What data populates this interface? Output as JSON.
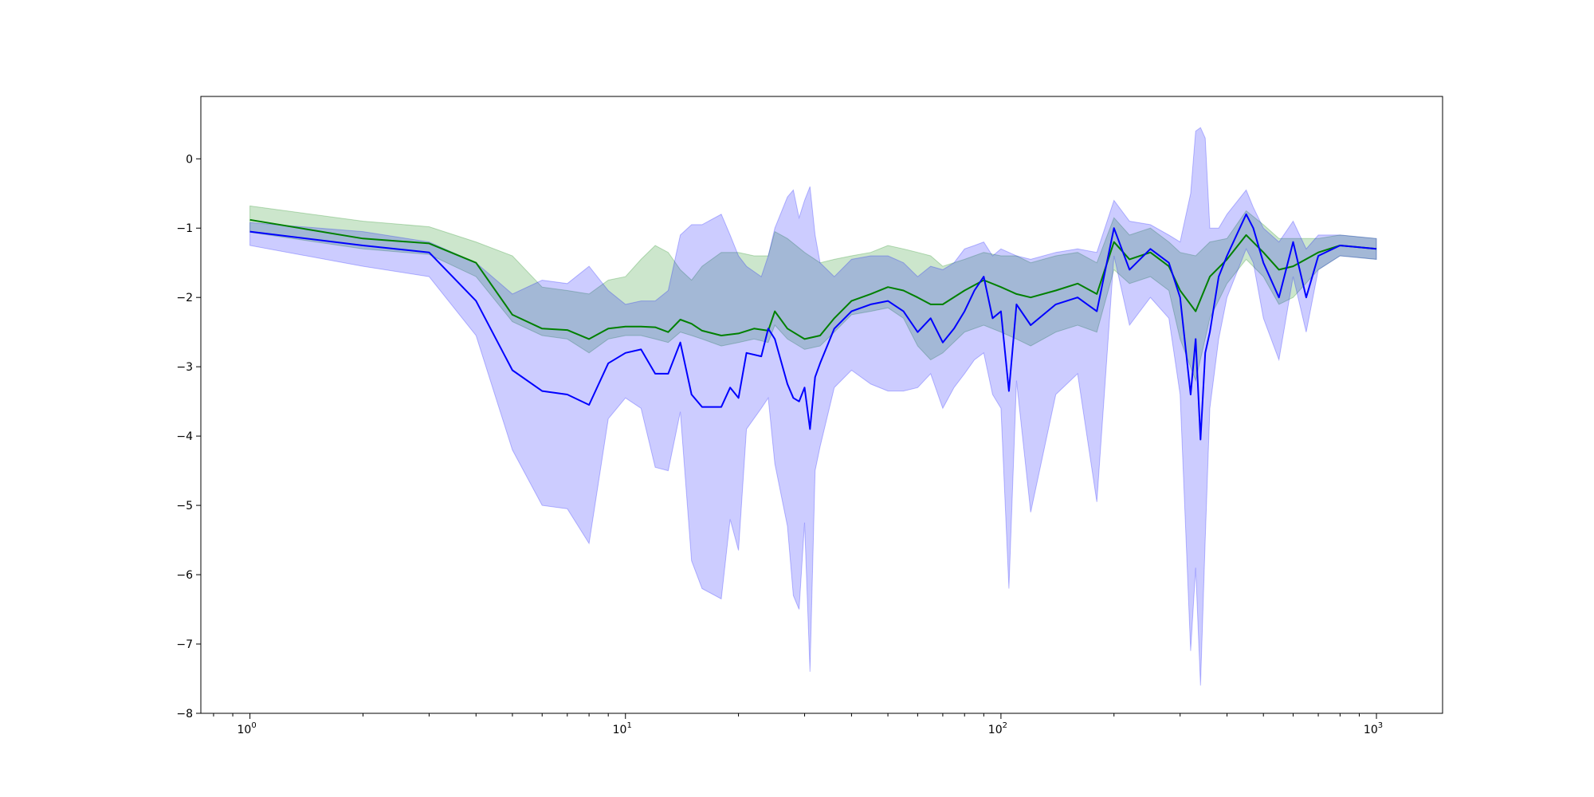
{
  "chart_data": {
    "type": "line",
    "title": "",
    "xlabel": "",
    "ylabel": "",
    "x_scale": "log",
    "xlim": [
      0.74,
      1500
    ],
    "ylim": [
      -8,
      0.9
    ],
    "grid": false,
    "legend": "none",
    "x_ticks": [
      {
        "value": 1,
        "base": "10",
        "exp": "0"
      },
      {
        "value": 10,
        "base": "10",
        "exp": "1"
      },
      {
        "value": 100,
        "base": "10",
        "exp": "2"
      },
      {
        "value": 1000,
        "base": "10",
        "exp": "3"
      }
    ],
    "y_ticks": [
      {
        "value": 0,
        "label": "0"
      },
      {
        "value": -1,
        "label": "−1"
      },
      {
        "value": -2,
        "label": "−2"
      },
      {
        "value": -3,
        "label": "−3"
      },
      {
        "value": -4,
        "label": "−4"
      },
      {
        "value": -5,
        "label": "−5"
      },
      {
        "value": -6,
        "label": "−6"
      },
      {
        "value": -7,
        "label": "−7"
      },
      {
        "value": -8,
        "label": "−8"
      }
    ],
    "series": [
      {
        "color": "#008000",
        "band_color": "#008000",
        "band_opacity": 0.2,
        "x": [
          1,
          2,
          3,
          4,
          5,
          6,
          7,
          8,
          9,
          10,
          11,
          12,
          13,
          14,
          15,
          16,
          18,
          20,
          22,
          24,
          25,
          27,
          30,
          33,
          36,
          40,
          45,
          50,
          55,
          60,
          65,
          70,
          80,
          90,
          100,
          110,
          120,
          140,
          160,
          180,
          200,
          220,
          250,
          280,
          300,
          330,
          360,
          400,
          450,
          500,
          550,
          600,
          700,
          800,
          1000
        ],
        "y": [
          -0.88,
          -1.15,
          -1.22,
          -1.5,
          -2.25,
          -2.45,
          -2.47,
          -2.6,
          -2.45,
          -2.42,
          -2.42,
          -2.43,
          -2.5,
          -2.32,
          -2.38,
          -2.48,
          -2.55,
          -2.52,
          -2.45,
          -2.48,
          -2.2,
          -2.45,
          -2.6,
          -2.55,
          -2.3,
          -2.05,
          -1.95,
          -1.85,
          -1.9,
          -2.0,
          -2.1,
          -2.1,
          -1.9,
          -1.75,
          -1.85,
          -1.95,
          -2.0,
          -1.9,
          -1.8,
          -1.95,
          -1.2,
          -1.45,
          -1.35,
          -1.55,
          -1.9,
          -2.2,
          -1.7,
          -1.45,
          -1.1,
          -1.35,
          -1.6,
          -1.55,
          -1.35,
          -1.25,
          -1.3
        ],
        "lower": [
          -1.06,
          -1.3,
          -1.38,
          -1.7,
          -2.35,
          -2.55,
          -2.6,
          -2.8,
          -2.6,
          -2.55,
          -2.55,
          -2.6,
          -2.65,
          -2.5,
          -2.55,
          -2.6,
          -2.7,
          -2.65,
          -2.6,
          -2.65,
          -2.4,
          -2.6,
          -2.75,
          -2.7,
          -2.5,
          -2.25,
          -2.2,
          -2.15,
          -2.3,
          -2.7,
          -2.9,
          -2.8,
          -2.5,
          -2.4,
          -2.5,
          -2.6,
          -2.7,
          -2.5,
          -2.4,
          -2.5,
          -1.6,
          -1.8,
          -1.7,
          -1.9,
          -2.6,
          -3.2,
          -2.3,
          -1.8,
          -1.45,
          -1.7,
          -2.1,
          -2.0,
          -1.6,
          -1.4,
          -1.45
        ],
        "upper": [
          -0.68,
          -0.9,
          -0.98,
          -1.2,
          -1.4,
          -1.85,
          -1.9,
          -1.95,
          -1.75,
          -1.7,
          -1.45,
          -1.25,
          -1.35,
          -1.6,
          -1.75,
          -1.55,
          -1.35,
          -1.35,
          -1.4,
          -1.4,
          -1.05,
          -1.15,
          -1.35,
          -1.5,
          -1.45,
          -1.4,
          -1.35,
          -1.25,
          -1.3,
          -1.35,
          -1.4,
          -1.55,
          -1.45,
          -1.35,
          -1.4,
          -1.4,
          -1.5,
          -1.4,
          -1.35,
          -1.5,
          -0.85,
          -1.1,
          -1.0,
          -1.2,
          -1.35,
          -1.4,
          -1.2,
          -1.15,
          -0.75,
          -0.95,
          -1.15,
          -1.15,
          -1.15,
          -1.1,
          -1.15
        ]
      },
      {
        "color": "#0000ff",
        "band_color": "#0000ff",
        "band_opacity": 0.2,
        "x": [
          1,
          2,
          3,
          4,
          5,
          6,
          7,
          8,
          9,
          10,
          11,
          12,
          13,
          14,
          15,
          16,
          18,
          19,
          20,
          21,
          23,
          24,
          25,
          27,
          28,
          29,
          30,
          31,
          32,
          33,
          36,
          40,
          45,
          50,
          55,
          60,
          65,
          70,
          75,
          80,
          85,
          90,
          95,
          100,
          105,
          110,
          120,
          140,
          160,
          180,
          200,
          220,
          250,
          280,
          300,
          320,
          330,
          340,
          350,
          360,
          380,
          400,
          450,
          470,
          500,
          550,
          600,
          650,
          700,
          800,
          1000
        ],
        "y": [
          -1.05,
          -1.25,
          -1.35,
          -2.05,
          -3.05,
          -3.35,
          -3.4,
          -3.55,
          -2.95,
          -2.8,
          -2.75,
          -3.1,
          -3.1,
          -2.65,
          -3.4,
          -3.58,
          -3.58,
          -3.3,
          -3.45,
          -2.8,
          -2.85,
          -2.45,
          -2.6,
          -3.25,
          -3.45,
          -3.5,
          -3.3,
          -3.9,
          -3.15,
          -2.95,
          -2.45,
          -2.2,
          -2.1,
          -2.05,
          -2.2,
          -2.5,
          -2.3,
          -2.65,
          -2.45,
          -2.2,
          -1.9,
          -1.7,
          -2.3,
          -2.2,
          -3.35,
          -2.1,
          -2.4,
          -2.1,
          -2.0,
          -2.2,
          -1.0,
          -1.6,
          -1.3,
          -1.5,
          -2.0,
          -3.4,
          -2.6,
          -4.05,
          -2.8,
          -2.5,
          -1.7,
          -1.4,
          -0.8,
          -1.0,
          -1.5,
          -2.0,
          -1.2,
          -2.0,
          -1.4,
          -1.25,
          -1.3
        ],
        "lower": [
          -1.25,
          -1.55,
          -1.7,
          -2.55,
          -4.2,
          -5.0,
          -5.05,
          -5.55,
          -3.75,
          -3.45,
          -3.6,
          -4.45,
          -4.5,
          -3.65,
          -5.8,
          -6.2,
          -6.35,
          -5.2,
          -5.65,
          -3.9,
          -3.6,
          -3.45,
          -4.4,
          -5.3,
          -6.3,
          -6.5,
          -5.25,
          -7.4,
          -4.5,
          -4.15,
          -3.3,
          -3.05,
          -3.25,
          -3.35,
          -3.35,
          -3.3,
          -3.1,
          -3.6,
          -3.3,
          -3.1,
          -2.9,
          -2.8,
          -3.4,
          -3.6,
          -6.2,
          -3.2,
          -5.1,
          -3.4,
          -3.1,
          -4.95,
          -1.4,
          -2.4,
          -2.0,
          -2.3,
          -3.4,
          -7.1,
          -5.9,
          -7.6,
          -5.5,
          -3.6,
          -2.6,
          -2.0,
          -1.3,
          -1.5,
          -2.3,
          -2.9,
          -1.7,
          -2.5,
          -1.6,
          -1.4,
          -1.45
        ],
        "upper": [
          -0.92,
          -1.05,
          -1.2,
          -1.5,
          -1.95,
          -1.75,
          -1.8,
          -1.55,
          -1.9,
          -2.1,
          -2.05,
          -2.05,
          -1.9,
          -1.1,
          -0.95,
          -0.95,
          -0.8,
          -1.1,
          -1.4,
          -1.55,
          -1.7,
          -1.4,
          -1.0,
          -0.55,
          -0.45,
          -0.85,
          -0.6,
          -0.4,
          -1.1,
          -1.5,
          -1.7,
          -1.45,
          -1.4,
          -1.4,
          -1.5,
          -1.7,
          -1.55,
          -1.6,
          -1.5,
          -1.3,
          -1.25,
          -1.2,
          -1.4,
          -1.3,
          -1.35,
          -1.4,
          -1.45,
          -1.35,
          -1.3,
          -1.35,
          -0.6,
          -0.9,
          -0.95,
          -1.1,
          -1.2,
          -0.5,
          0.4,
          0.45,
          0.3,
          -1.0,
          -1.0,
          -0.8,
          -0.45,
          -0.7,
          -1.0,
          -1.2,
          -0.9,
          -1.3,
          -1.1,
          -1.1,
          -1.15
        ]
      }
    ]
  }
}
